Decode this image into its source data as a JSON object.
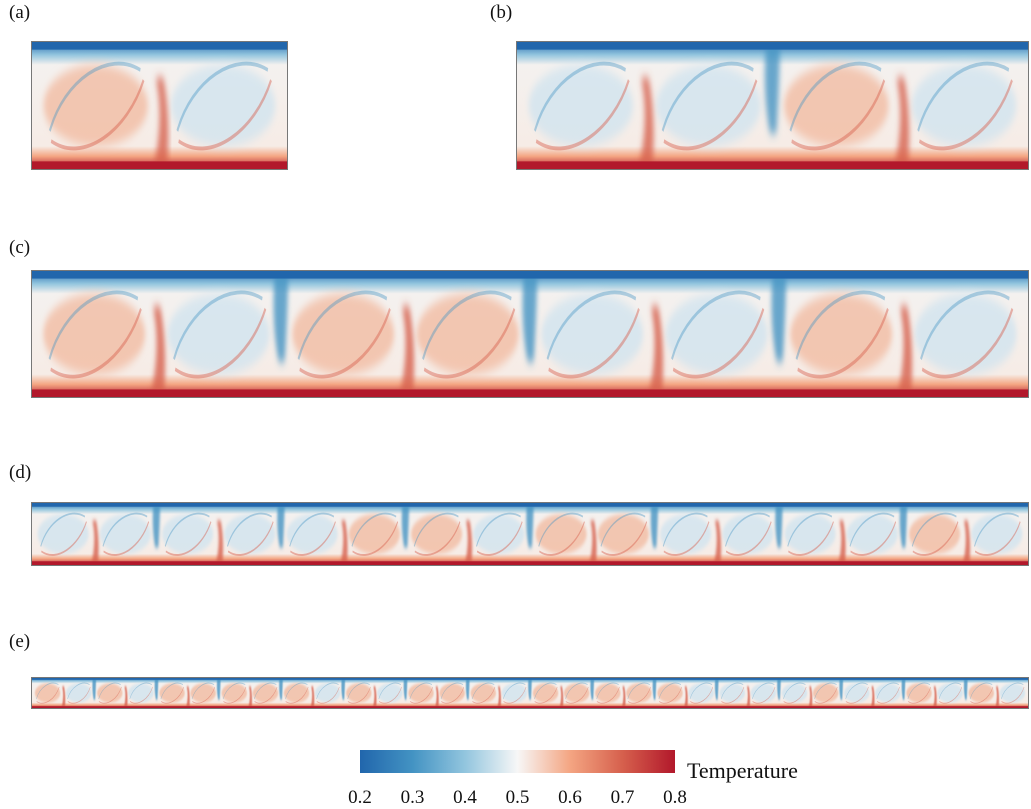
{
  "panels": [
    {
      "label": "(a)",
      "cells": 2
    },
    {
      "label": "(b)",
      "cells": 4
    },
    {
      "label": "(c)",
      "cells": 8
    },
    {
      "label": "(d)",
      "cells": 16
    },
    {
      "label": "(e)",
      "cells": 32
    }
  ],
  "colorbar": {
    "title": "Temperature",
    "ticks": [
      "0.2",
      "0.3",
      "0.4",
      "0.5",
      "0.6",
      "0.7",
      "0.8"
    ],
    "range": [
      0.2,
      0.8
    ],
    "colors": [
      "#2166ac",
      "#4393c3",
      "#92c5de",
      "#f7f7f7",
      "#f4a582",
      "#d6604d",
      "#b2182b"
    ]
  }
}
